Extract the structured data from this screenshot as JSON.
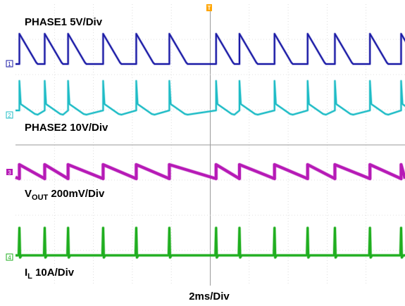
{
  "chart_data": {
    "type": "line",
    "xlabel": "2ms/Div",
    "x_unit": "ms",
    "x_range": [
      0,
      20
    ],
    "grid": true,
    "trigger_marker": "T",
    "series": [
      {
        "channel": "1",
        "name": "PHASE1",
        "scale": "5V/Div",
        "color": "#1a1aa6",
        "waveform": "pulse-with-ramp-down",
        "pulse_times_ms": [
          0.2,
          1.5,
          2.7,
          4.5,
          6.2,
          7.9,
          10.3,
          11.5,
          13.3,
          15.0,
          16.4,
          18.2,
          19.8
        ]
      },
      {
        "channel": "2",
        "name": "PHASE2",
        "scale": "10V/Div",
        "color": "#1ebcc6",
        "waveform": "pulse-with-ramp-down",
        "pulse_times_ms": [
          0.2,
          1.5,
          2.7,
          4.5,
          6.2,
          7.9,
          10.3,
          11.5,
          13.3,
          15.0,
          16.4,
          18.2,
          19.8
        ]
      },
      {
        "channel": "3",
        "name_main": "V",
        "name_sub": "OUT",
        "scale": "200mV/Div",
        "color": "#b61ab6",
        "waveform": "sawtooth-ripple",
        "pulse_times_ms": [
          0.2,
          1.5,
          2.7,
          4.5,
          6.2,
          7.9,
          10.3,
          11.5,
          13.3,
          15.0,
          16.4,
          18.2,
          19.8
        ]
      },
      {
        "channel": "4",
        "name_main": "I",
        "name_sub": "L",
        "scale": "10A/Div",
        "color": "#1fae1f",
        "waveform": "current-spikes",
        "pulse_times_ms": [
          0.2,
          1.5,
          2.7,
          4.5,
          6.2,
          7.9,
          10.3,
          11.5,
          13.3,
          15.0,
          16.4,
          18.2,
          19.8
        ]
      }
    ]
  },
  "labels": {
    "ch1": "PHASE1 5V/Div",
    "ch2": "PHASE2 10V/Div",
    "ch3_main": "V",
    "ch3_sub": "OUT",
    "ch3_scale": " 200mV/Div",
    "ch4_main": "I",
    "ch4_sub": "L",
    "ch4_scale": " 10A/Div",
    "timebase": "2ms/Div"
  },
  "markers": {
    "ch1": "1",
    "ch2": "2",
    "ch3": "3",
    "ch4": "4",
    "trigger": "T"
  }
}
